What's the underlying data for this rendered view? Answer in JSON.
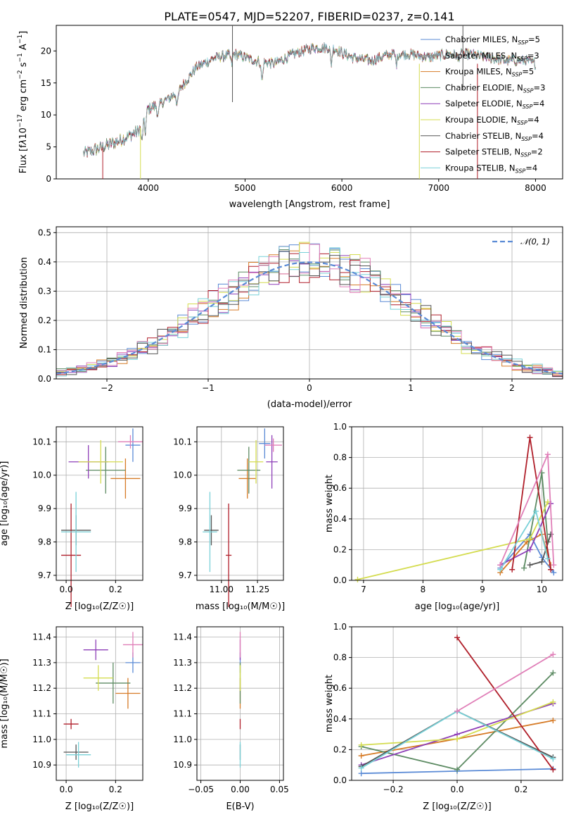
{
  "title": "PLATE=0547, MJD=52207, FIBERID=0237, z=0.141",
  "colors": {
    "c1": "#5b8bd6",
    "c2": "#8c8c8c",
    "c3": "#d67b27",
    "c4": "#5d8b63",
    "c5": "#8e3fb8",
    "c6": "#d4dc4f",
    "c7": "#555555",
    "c8": "#b01f2a",
    "c9": "#79d1d8",
    "pink": "#e07fb8",
    "norm": "#5b8bd6"
  },
  "chart_data": [
    {
      "id": "spectrum",
      "type": "line",
      "xlabel": "wavelength [Angstrom, rest frame]",
      "ylabel": "Flux [fλ10⁻¹⁷ erg cm⁻² s⁻¹ A⁻¹]",
      "xlim": [
        3050,
        8280
      ],
      "ylim": [
        0,
        24
      ],
      "xticks": [
        4000,
        5000,
        6000,
        7000,
        8000
      ],
      "yticks": [
        0,
        5,
        10,
        15,
        20
      ],
      "grid": false,
      "legend_position": "top-right",
      "continuum": {
        "x": [
          3300,
          3500,
          3700,
          3900,
          4000,
          4100,
          4300,
          4500,
          4700,
          4900,
          5100,
          5300,
          5500,
          5700,
          5900,
          6100,
          6300,
          6500,
          6700,
          6900,
          7100,
          7300,
          7500,
          7700,
          7900,
          8000
        ],
        "y": [
          3.8,
          4.8,
          6.0,
          7.5,
          11.0,
          11.5,
          13.5,
          17.5,
          19.0,
          19.5,
          18.5,
          18.0,
          19.5,
          20.5,
          20.5,
          19.0,
          18.5,
          19.5,
          19.5,
          19.0,
          19.5,
          19.5,
          19.0,
          18.5,
          18.5,
          18.0
        ]
      },
      "series": [
        {
          "name": "Chabrier MILES, N$_{SSP}$=5",
          "sub": "N",
          "label": "Chabrier MILES, N",
          "n": "=5",
          "ssp": "SSP",
          "color": "c1"
        },
        {
          "name": "Salpeter MILES, N_SSP=3",
          "label": "Salpeter MILES, N",
          "ssp": "SSP",
          "n": "=3",
          "color": "c2"
        },
        {
          "name": "Kroupa MILES, N_SSP=5",
          "label": "Kroupa MILES, N",
          "ssp": "SSP",
          "n": "=5",
          "color": "c3"
        },
        {
          "name": "Chabrier ELODIE, N_SSP=3",
          "label": "Chabrier ELODIE, N",
          "ssp": "SSP",
          "n": "=3",
          "color": "c4"
        },
        {
          "name": "Salpeter ELODIE, N_SSP=4",
          "label": "Salpeter ELODIE, N",
          "ssp": "SSP",
          "n": "=4",
          "color": "c5"
        },
        {
          "name": "Kroupa ELODIE, N_SSP=4",
          "label": "Kroupa ELODIE, N",
          "ssp": "SSP",
          "n": "=4",
          "color": "c6"
        },
        {
          "name": "Chabrier STELIB, N_SSP=4",
          "label": "Chabrier STELIB, N",
          "ssp": "SSP",
          "n": "=4",
          "color": "c7"
        },
        {
          "name": "Salpeter STELIB, N_SSP=2",
          "label": "Salpeter STELIB, N",
          "ssp": "SSP",
          "n": "=2",
          "color": "c8"
        },
        {
          "name": "Kroupa STELIB, N_SSP=4",
          "label": "Kroupa STELIB, N",
          "ssp": "SSP",
          "n": "=4",
          "color": "c9"
        }
      ]
    },
    {
      "id": "residuals",
      "type": "histogram",
      "xlabel": "(data-model)/error",
      "ylabel": "Normed distribution",
      "xlim": [
        -2.5,
        2.5
      ],
      "ylim": [
        0,
        0.52
      ],
      "xticks": [
        -2,
        -1,
        0,
        1,
        2
      ],
      "xticklabels": [
        "−2",
        "−1",
        "0",
        "1",
        "2"
      ],
      "yticks": [
        0.0,
        0.1,
        0.2,
        0.3,
        0.4,
        0.5
      ],
      "yticklabels": [
        "0.0",
        "0.1",
        "0.2",
        "0.3",
        "0.4",
        "0.5"
      ],
      "grid": true,
      "legend": {
        "label": "𝒩(0, 1)",
        "position": "top-right"
      },
      "bin_width": 0.1,
      "bins_start": -2.5
    },
    {
      "id": "age_vs_Z",
      "type": "errorbar",
      "xlabel": "Z [log₁₀(Z/Z☉)]",
      "ylabel": "age  [log₁₀(age/yr)]",
      "xlim": [
        -0.04,
        0.31
      ],
      "ylim": [
        9.685,
        10.145
      ],
      "xticks": [
        0.0,
        0.2
      ],
      "xticklabels": [
        "0.0",
        "0.2"
      ],
      "yticks": [
        9.7,
        9.8,
        9.9,
        10.0,
        10.1
      ],
      "yticklabels": [
        "9.7",
        "9.8",
        "9.9",
        "10.0",
        "10.1"
      ],
      "grid": true,
      "points": [
        {
          "x": 0.27,
          "xerr": 0.03,
          "y": 10.09,
          "yerr": 0.05,
          "color": "c1"
        },
        {
          "x": 0.24,
          "xerr": 0.06,
          "y": 9.99,
          "yerr": 0.06,
          "color": "c3"
        },
        {
          "x": 0.16,
          "xerr": 0.08,
          "y": 10.015,
          "yerr": 0.07,
          "color": "c4"
        },
        {
          "x": 0.09,
          "xerr": 0.08,
          "y": 10.04,
          "yerr": 0.05,
          "color": "c5"
        },
        {
          "x": 0.14,
          "xerr": 0.09,
          "y": 10.04,
          "yerr": 0.065,
          "color": "c6"
        },
        {
          "x": 0.04,
          "xerr": 0.06,
          "y": 9.835,
          "yerr": 0.045,
          "color": "c7"
        },
        {
          "x": 0.02,
          "xerr": 0.04,
          "y": 9.76,
          "yerr": 0.155,
          "color": "c8"
        },
        {
          "x": 0.04,
          "xerr": 0.06,
          "y": 9.83,
          "yerr": 0.12,
          "color": "c9"
        },
        {
          "x": 0.26,
          "xerr": 0.05,
          "y": 10.1,
          "yerr": 0.02,
          "color": "pink"
        }
      ]
    },
    {
      "id": "age_vs_mass",
      "type": "errorbar",
      "xlabel": "mass [log₁₀(M/M☉)]",
      "ylabel": "",
      "xlim": [
        10.83,
        11.43
      ],
      "ylim": [
        9.685,
        10.145
      ],
      "xticks": [
        11.0,
        11.25
      ],
      "xticklabels": [
        "11.00",
        "11.25"
      ],
      "yticks": [
        9.7,
        9.8,
        9.9,
        10.0,
        10.1
      ],
      "yticklabels": [
        "9.7",
        "9.8",
        "9.9",
        "10.0",
        "10.1"
      ],
      "grid": true,
      "points": [
        {
          "x": 11.3,
          "xerr": 0.04,
          "y": 10.095,
          "yerr": 0.045,
          "color": "c1"
        },
        {
          "x": 11.18,
          "xerr": 0.06,
          "y": 9.99,
          "yerr": 0.06,
          "color": "c3"
        },
        {
          "x": 11.19,
          "xerr": 0.08,
          "y": 10.015,
          "yerr": 0.07,
          "color": "c4"
        },
        {
          "x": 11.35,
          "xerr": 0.04,
          "y": 10.04,
          "yerr": 0.08,
          "color": "c5"
        },
        {
          "x": 11.24,
          "xerr": 0.05,
          "y": 10.04,
          "yerr": 0.065,
          "color": "c6"
        },
        {
          "x": 10.93,
          "xerr": 0.05,
          "y": 9.835,
          "yerr": 0.045,
          "color": "c7"
        },
        {
          "x": 11.05,
          "xerr": 0.02,
          "y": 9.76,
          "yerr": 0.155,
          "color": "c8"
        },
        {
          "x": 10.92,
          "xerr": 0.05,
          "y": 9.83,
          "yerr": 0.12,
          "color": "c9"
        },
        {
          "x": 11.36,
          "xerr": 0.06,
          "y": 10.09,
          "yerr": 0.02,
          "color": "pink"
        }
      ]
    },
    {
      "id": "weight_vs_age",
      "type": "line",
      "xlabel": "age  [log₁₀(age/yr)]",
      "ylabel": "mass weight",
      "xlim": [
        6.8,
        10.35
      ],
      "ylim": [
        0.0,
        1.0
      ],
      "xticks": [
        7,
        8,
        9,
        10
      ],
      "xticklabels": [
        "7",
        "8",
        "9",
        "10"
      ],
      "yticks": [
        0.0,
        0.2,
        0.4,
        0.6,
        0.8,
        1.0
      ],
      "yticklabels": [
        "0.0",
        "0.2",
        "0.4",
        "0.6",
        "0.8",
        "1.0"
      ],
      "grid": true,
      "series": [
        {
          "color": "c1",
          "x": [
            9.3,
            9.8,
            10.0,
            10.2
          ],
          "y": [
            0.08,
            0.3,
            0.15,
            0.05
          ]
        },
        {
          "color": "c3",
          "x": [
            9.3,
            9.75,
            10.0,
            10.15
          ],
          "y": [
            0.05,
            0.25,
            0.3,
            0.1
          ]
        },
        {
          "color": "c4",
          "x": [
            9.7,
            10.0,
            10.1
          ],
          "y": [
            0.08,
            0.7,
            0.25
          ]
        },
        {
          "color": "c5",
          "x": [
            9.3,
            9.8,
            10.15
          ],
          "y": [
            0.1,
            0.2,
            0.5
          ]
        },
        {
          "color": "c6",
          "x": [
            6.9,
            9.8,
            10.1
          ],
          "y": [
            0.005,
            0.27,
            0.51
          ]
        },
        {
          "color": "c7",
          "x": [
            9.8,
            10.0,
            10.15
          ],
          "y": [
            0.1,
            0.12,
            0.3
          ]
        },
        {
          "color": "c8",
          "x": [
            9.5,
            9.8,
            10.15
          ],
          "y": [
            0.07,
            0.93,
            0.07
          ]
        },
        {
          "color": "c9",
          "x": [
            9.3,
            9.9,
            10.1
          ],
          "y": [
            0.07,
            0.45,
            0.14
          ]
        },
        {
          "color": "pink",
          "x": [
            9.3,
            10.1,
            10.2
          ],
          "y": [
            0.1,
            0.82,
            0.1
          ]
        }
      ]
    },
    {
      "id": "mass_vs_Z",
      "type": "errorbar",
      "xlabel": "Z [log₁₀(Z/Z☉)]",
      "ylabel": "mass [log₁₀(M/M☉)]",
      "xlim": [
        -0.04,
        0.31
      ],
      "ylim": [
        10.84,
        11.44
      ],
      "xticks": [
        0.0,
        0.2
      ],
      "xticklabels": [
        "0.0",
        "0.2"
      ],
      "yticks": [
        10.9,
        11.0,
        11.1,
        11.2,
        11.3,
        11.4
      ],
      "yticklabels": [
        "10.9",
        "11.0",
        "11.1",
        "11.2",
        "11.3",
        "11.4"
      ],
      "grid": true,
      "points": [
        {
          "x": 0.27,
          "xerr": 0.03,
          "y": 11.3,
          "yerr": 0.04,
          "color": "c1"
        },
        {
          "x": 0.25,
          "xerr": 0.05,
          "y": 11.18,
          "yerr": 0.06,
          "color": "c3"
        },
        {
          "x": 0.19,
          "xerr": 0.07,
          "y": 11.22,
          "yerr": 0.08,
          "color": "c4"
        },
        {
          "x": 0.12,
          "xerr": 0.05,
          "y": 11.35,
          "yerr": 0.04,
          "color": "c5"
        },
        {
          "x": 0.13,
          "xerr": 0.06,
          "y": 11.24,
          "yerr": 0.05,
          "color": "c6"
        },
        {
          "x": 0.04,
          "xerr": 0.05,
          "y": 10.95,
          "yerr": 0.03,
          "color": "c7"
        },
        {
          "x": 0.02,
          "xerr": 0.03,
          "y": 11.06,
          "yerr": 0.02,
          "color": "c8"
        },
        {
          "x": 0.05,
          "xerr": 0.05,
          "y": 10.94,
          "yerr": 0.05,
          "color": "c9"
        },
        {
          "x": 0.27,
          "xerr": 0.04,
          "y": 11.37,
          "yerr": 0.05,
          "color": "pink"
        }
      ]
    },
    {
      "id": "mass_vs_ebv",
      "type": "errorbar",
      "xlabel": "E(B-V)",
      "ylabel": "",
      "xlim": [
        -0.055,
        0.055
      ],
      "ylim": [
        10.84,
        11.44
      ],
      "xticks": [
        -0.05,
        0.0,
        0.05
      ],
      "xticklabels": [
        "−0.05",
        "0.00",
        "0.05"
      ],
      "yticks": [
        10.9,
        11.0,
        11.1,
        11.2,
        11.3,
        11.4
      ],
      "yticklabels": [
        "10.9",
        "11.0",
        "11.1",
        "11.2",
        "11.3",
        "11.4"
      ],
      "grid": true,
      "points": [
        {
          "x": 0.0,
          "xerr": 0.0,
          "y": 11.3,
          "yerr": 0.04,
          "color": "c1"
        },
        {
          "x": 0.0,
          "xerr": 0.0,
          "y": 11.18,
          "yerr": 0.06,
          "color": "c3"
        },
        {
          "x": 0.0,
          "xerr": 0.0,
          "y": 11.22,
          "yerr": 0.08,
          "color": "c4"
        },
        {
          "x": 0.0,
          "xerr": 0.0,
          "y": 11.35,
          "yerr": 0.04,
          "color": "c5"
        },
        {
          "x": 0.0,
          "xerr": 0.0,
          "y": 11.24,
          "yerr": 0.05,
          "color": "c6"
        },
        {
          "x": 0.0,
          "xerr": 0.0,
          "y": 10.95,
          "yerr": 0.03,
          "color": "c7"
        },
        {
          "x": 0.0,
          "xerr": 0.0,
          "y": 11.06,
          "yerr": 0.02,
          "color": "c8"
        },
        {
          "x": 0.0,
          "xerr": 0.0,
          "y": 10.94,
          "yerr": 0.05,
          "color": "c9"
        },
        {
          "x": 0.0,
          "xerr": 0.0,
          "y": 11.37,
          "yerr": 0.05,
          "color": "pink"
        }
      ]
    },
    {
      "id": "weight_vs_Z",
      "type": "line",
      "xlabel": "Z [log₁₀(Z/Z☉)]",
      "ylabel": "mass weight",
      "xlim": [
        -0.33,
        0.33
      ],
      "ylim": [
        0.0,
        1.0
      ],
      "xticks": [
        -0.2,
        0.0,
        0.2
      ],
      "xticklabels": [
        "−0.2",
        "0.0",
        "0.2"
      ],
      "yticks": [
        0.0,
        0.2,
        0.4,
        0.6,
        0.8,
        1.0
      ],
      "yticklabels": [
        "0.0",
        "0.2",
        "0.4",
        "0.6",
        "0.8",
        "1.0"
      ],
      "grid": true,
      "series": [
        {
          "color": "c1",
          "x": [
            -0.3,
            0.0,
            0.3
          ],
          "y": [
            0.045,
            0.06,
            0.075
          ]
        },
        {
          "color": "c3",
          "x": [
            -0.3,
            0.0,
            0.3
          ],
          "y": [
            0.16,
            0.27,
            0.39
          ]
        },
        {
          "color": "c4",
          "x": [
            -0.3,
            0.0,
            0.3
          ],
          "y": [
            0.22,
            0.07,
            0.7
          ]
        },
        {
          "color": "c5",
          "x": [
            -0.3,
            0.0,
            0.3
          ],
          "y": [
            0.1,
            0.3,
            0.5
          ]
        },
        {
          "color": "c6",
          "x": [
            -0.3,
            0.0,
            0.3
          ],
          "y": [
            0.23,
            0.27,
            0.51
          ]
        },
        {
          "color": "c7",
          "x": [
            -0.3,
            0.0,
            0.3
          ],
          "y": [
            0.09,
            0.45,
            0.15
          ]
        },
        {
          "color": "c8",
          "x": [
            0.0,
            0.3
          ],
          "y": [
            0.93,
            0.07
          ]
        },
        {
          "color": "c9",
          "x": [
            -0.3,
            0.0,
            0.3
          ],
          "y": [
            0.08,
            0.45,
            0.14
          ]
        },
        {
          "color": "pink",
          "x": [
            0.0,
            0.3
          ],
          "y": [
            0.45,
            0.82
          ]
        }
      ]
    }
  ]
}
